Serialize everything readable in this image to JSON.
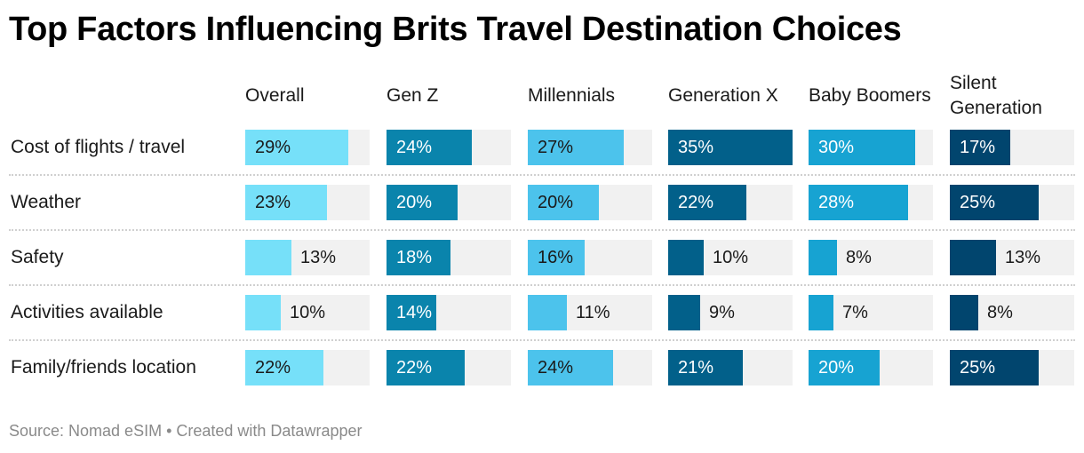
{
  "title": "Top Factors Influencing Brits Travel Destination Choices",
  "source": "Source: Nomad eSIM • Created with Datawrapper",
  "chart_data": {
    "type": "bar",
    "title": "Top Factors Influencing Brits Travel Destination Choices",
    "categories": [
      "Cost of flights / travel",
      "Weather",
      "Safety",
      "Activities available",
      "Family/friends location"
    ],
    "series": [
      {
        "name": "Overall",
        "color": "#76e0f9",
        "values": [
          29,
          23,
          13,
          10,
          22
        ],
        "labels": [
          "29%",
          "23%",
          "13%",
          "10%",
          "22%"
        ]
      },
      {
        "name": "Gen Z",
        "color": "#0a84ac",
        "values": [
          24,
          20,
          18,
          14,
          22
        ],
        "labels": [
          "24%",
          "20%",
          "18%",
          "14%",
          "22%"
        ]
      },
      {
        "name": "Millennials",
        "color": "#4cc3ec",
        "values": [
          27,
          20,
          16,
          11,
          24
        ],
        "labels": [
          "27%",
          "20%",
          "16%",
          "11%",
          "24%"
        ]
      },
      {
        "name": "Generation X",
        "color": "#02608a",
        "values": [
          35,
          22,
          10,
          9,
          21
        ],
        "labels": [
          "35%",
          "22%",
          "10%",
          "9%",
          "21%"
        ]
      },
      {
        "name": "Baby Boomers",
        "color": "#17a3d2",
        "values": [
          30,
          28,
          8,
          7,
          20
        ],
        "labels": [
          "30%",
          "28%",
          "8%",
          "7%",
          "20%"
        ]
      },
      {
        "name": "Silent Generation",
        "color": "#01456e",
        "values": [
          17,
          25,
          13,
          8,
          25
        ],
        "labels": [
          "17%",
          "25%",
          "13%",
          "8%",
          "25%"
        ]
      }
    ],
    "xlim": [
      0,
      35
    ],
    "light_text_series": [
      "Gen Z",
      "Generation X",
      "Baby Boomers",
      "Silent Generation"
    ]
  }
}
